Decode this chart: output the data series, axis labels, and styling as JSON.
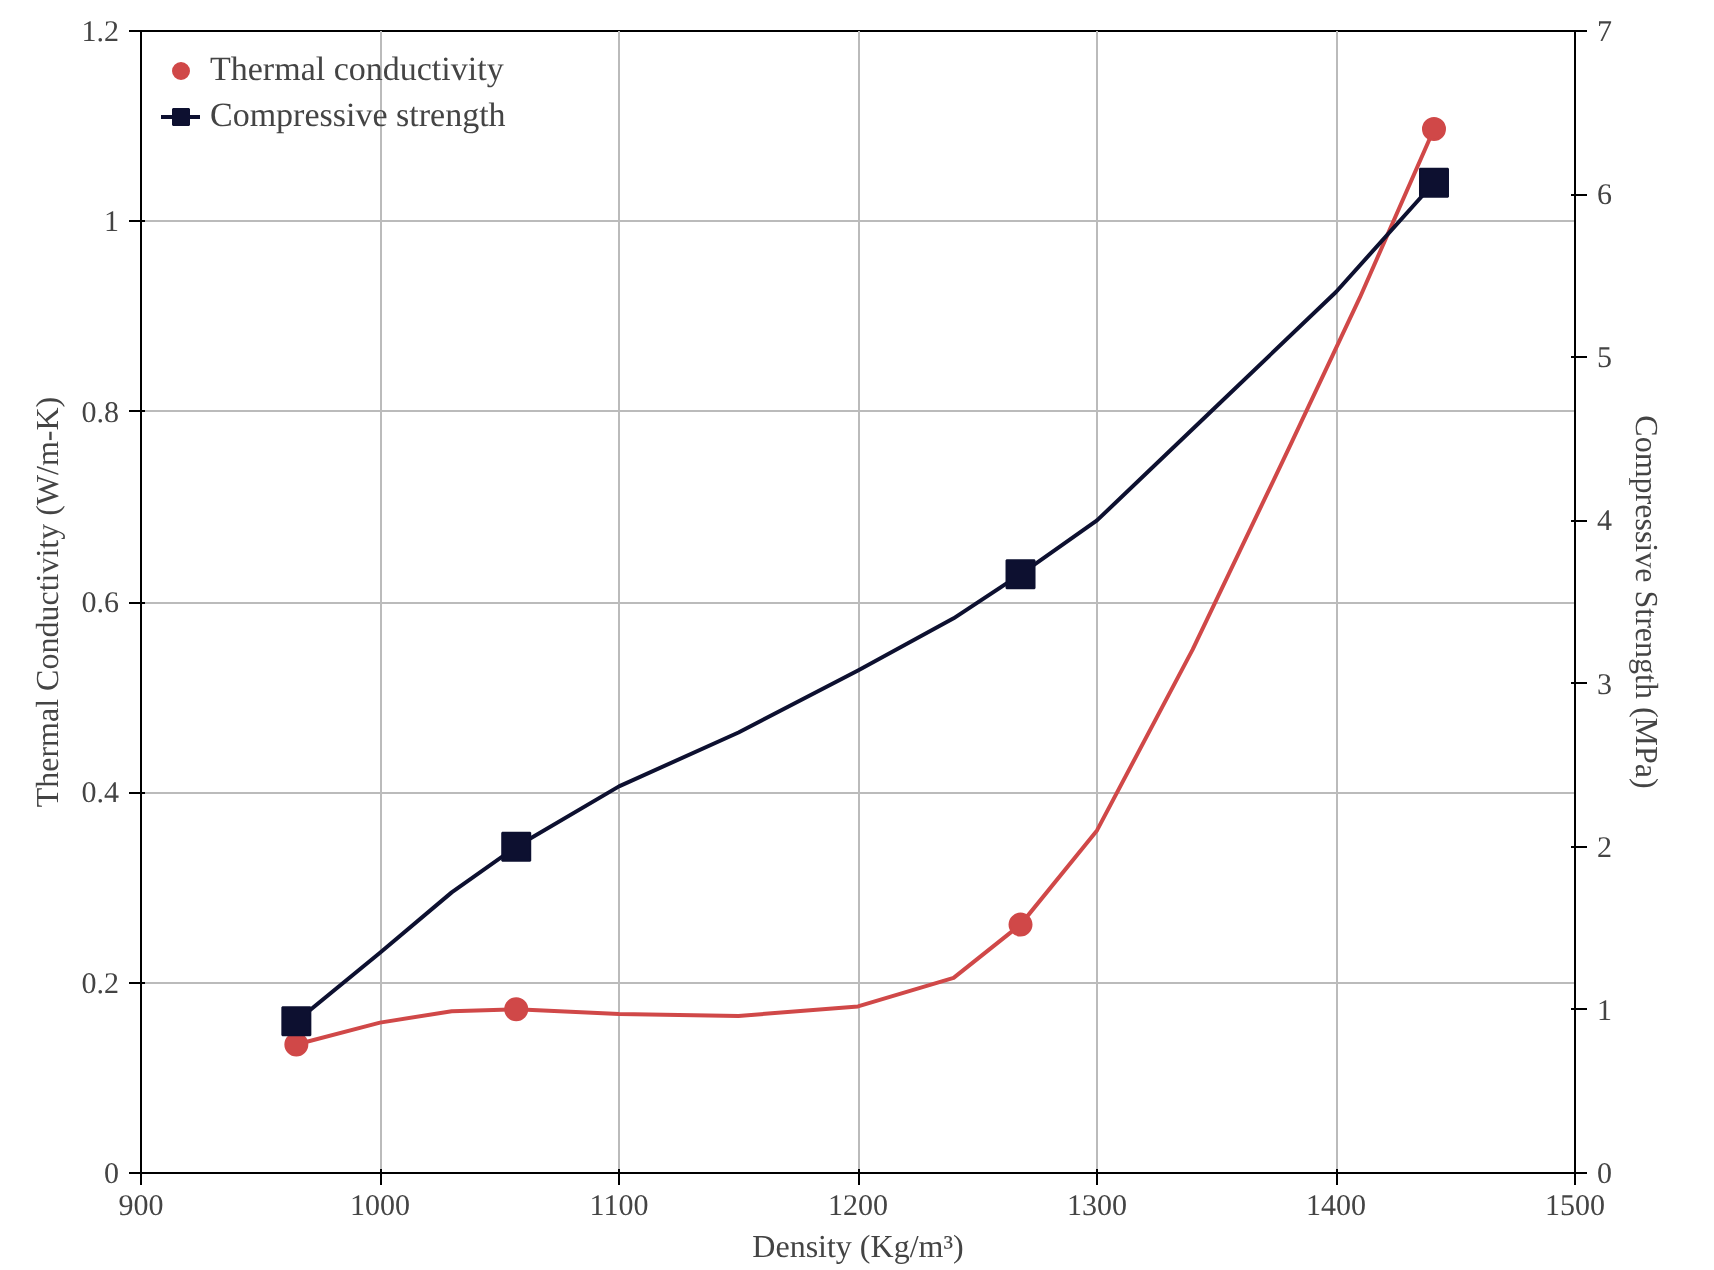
{
  "chart_data": {
    "type": "line",
    "xlabel": "Density (Kg/m³)",
    "ylabel": "Thermal Conductivity (W/m-K)",
    "y2label": "Compressive Strength (MPa)",
    "xlim": [
      900,
      1500
    ],
    "xticks": [
      900,
      1000,
      1100,
      1200,
      1300,
      1400,
      1500
    ],
    "ylim": [
      0,
      1.2
    ],
    "yticks": [
      0,
      {
        "value": 0.2,
        "label": "0.2"
      },
      {
        "value": 0.4,
        "label": "0.4"
      },
      {
        "value": 0.6,
        "label": "0.6"
      },
      {
        "value": 0.8,
        "label": "0.8"
      },
      1,
      {
        "value": 1.2,
        "label": "1.2"
      }
    ],
    "y2lim": [
      0,
      7
    ],
    "y2ticks": [
      0,
      1,
      2,
      3,
      4,
      5,
      6,
      7
    ],
    "grid": true,
    "legend": "top left",
    "series": [
      {
        "name": "Thermal conductivity",
        "type": "scatter",
        "color": "#d04848",
        "marker": "circle",
        "x": [
          965,
          1057,
          1268,
          1441
        ],
        "values": [
          0.135,
          0.172,
          0.261,
          1.097
        ]
      },
      {
        "color": "#d04848",
        "x": [
          965,
          1000,
          1030,
          1057,
          1100,
          1150,
          1200,
          1240,
          1268,
          1300,
          1340,
          1380,
          1410,
          1441
        ],
        "values": [
          0.135,
          0.158,
          0.17,
          0.172,
          0.167,
          0.165,
          0.175,
          0.205,
          0.261,
          0.36,
          0.55,
          0.76,
          0.92,
          1.097
        ]
      },
      {
        "name": "Compressive strength",
        "type": "scatter",
        "color": "#0d1030",
        "marker": "square",
        "line_style": "solid",
        "axis": "y2",
        "x": [
          965,
          1057,
          1268,
          1441
        ],
        "values": [
          0.93,
          2.0,
          3.67,
          6.07
        ]
      },
      {
        "color": "#0d1030",
        "axis": "y2",
        "x": [
          965,
          1000,
          1030,
          1057,
          1100,
          1150,
          1200,
          1240,
          1268,
          1300,
          1350,
          1400,
          1441
        ],
        "values": [
          0.93,
          1.35,
          1.72,
          2.0,
          2.37,
          2.7,
          3.08,
          3.4,
          3.67,
          4.0,
          4.7,
          5.4,
          6.07
        ]
      }
    ]
  }
}
